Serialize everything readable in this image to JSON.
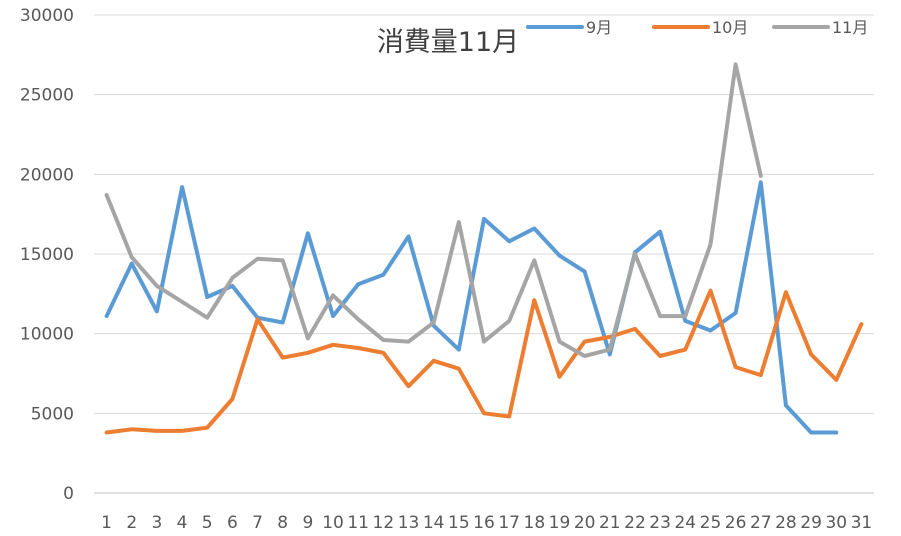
{
  "chart_data": {
    "type": "line",
    "title": "消費量11月",
    "xlabel": "",
    "ylabel": "",
    "ylim": [
      0,
      30000
    ],
    "yticks": [
      0,
      5000,
      10000,
      15000,
      20000,
      25000,
      30000
    ],
    "categories": [
      "1",
      "2",
      "3",
      "4",
      "5",
      "6",
      "7",
      "8",
      "9",
      "10",
      "11",
      "12",
      "13",
      "14",
      "15",
      "16",
      "17",
      "18",
      "19",
      "20",
      "21",
      "22",
      "23",
      "24",
      "25",
      "26",
      "27",
      "28",
      "29",
      "30",
      "31"
    ],
    "grid": true,
    "legend_position": "top-right",
    "series": [
      {
        "name": "9月",
        "color": "#5B9BD5",
        "values": [
          11100,
          14400,
          11400,
          19200,
          12300,
          13000,
          11000,
          10700,
          16300,
          11100,
          13100,
          13700,
          16100,
          10500,
          9000,
          17200,
          15800,
          16600,
          14900,
          13900,
          8700,
          15100,
          16400,
          10800,
          10200,
          11300,
          19500,
          5500,
          3800,
          3800,
          null
        ]
      },
      {
        "name": "10月",
        "color": "#ED7D31",
        "values": [
          3800,
          4000,
          3900,
          3900,
          4100,
          5900,
          10900,
          8500,
          8800,
          9300,
          9100,
          8800,
          6700,
          8300,
          7800,
          5000,
          4800,
          12100,
          7300,
          9500,
          9800,
          10300,
          8600,
          9000,
          12700,
          7900,
          7400,
          12600,
          8700,
          7100,
          10600
        ]
      },
      {
        "name": "11月",
        "color": "#A5A5A5",
        "values": [
          18700,
          14800,
          13000,
          12000,
          11000,
          13500,
          14700,
          14600,
          9700,
          12400,
          10900,
          9600,
          9500,
          10700,
          17000,
          9500,
          10800,
          14600,
          9500,
          8600,
          9000,
          15000,
          11100,
          11100,
          15600,
          26900,
          19900,
          null,
          null,
          null,
          null
        ]
      }
    ]
  }
}
